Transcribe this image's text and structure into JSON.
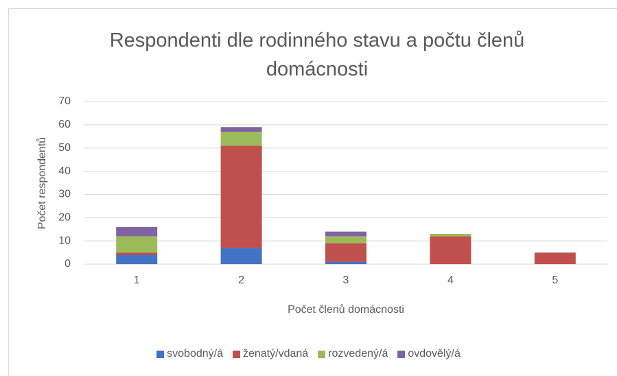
{
  "chart_data": {
    "type": "bar",
    "stacked": true,
    "title": "Respondenti dle rodinného stavu a počtu členů domácnosti",
    "x_label": "Počet členů domácnosti",
    "y_label": "Počet respondentů",
    "categories": [
      "1",
      "2",
      "3",
      "4",
      "5"
    ],
    "series": [
      {
        "name": "svobodný/á",
        "color": "#4472c4",
        "values": [
          4,
          7,
          1,
          0,
          0
        ]
      },
      {
        "name": "ženatý/vdaná",
        "color": "#c0504d",
        "values": [
          1,
          44,
          8,
          12,
          5
        ]
      },
      {
        "name": "rozvedený/á",
        "color": "#9bbb59",
        "values": [
          7,
          6,
          3,
          1,
          0
        ]
      },
      {
        "name": "ovdovělý/á",
        "color": "#8064a2",
        "values": [
          4,
          2,
          2,
          0,
          0
        ]
      }
    ],
    "ylim": [
      0,
      70
    ],
    "yticks": [
      0,
      10,
      20,
      30,
      40,
      50,
      60,
      70
    ],
    "grid": true,
    "legend": "bottom"
  }
}
